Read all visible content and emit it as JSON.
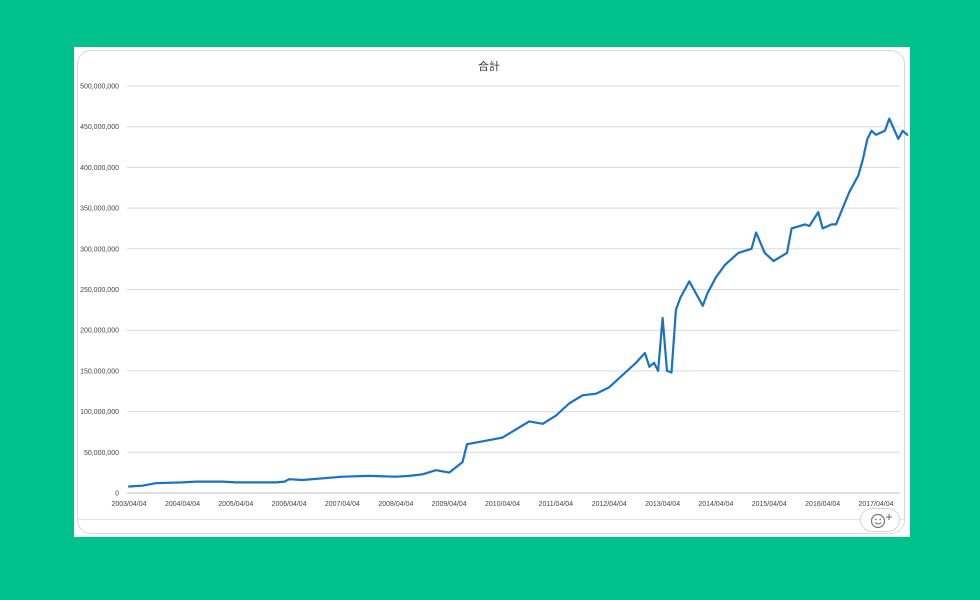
{
  "colors": {
    "page_bg": "#00c08b",
    "line": "#1a72c0",
    "grid": "#d9d9d9"
  },
  "reaction": {
    "icon": "smiley-plus-icon"
  },
  "chart_data": {
    "type": "line",
    "title": "合計",
    "xlabel": "",
    "ylabel": "",
    "grid": true,
    "legend": "none",
    "ylim": [
      0,
      500000000
    ],
    "y_ticks": [
      "0",
      "50,000,000",
      "100,000,000",
      "150,000,000",
      "200,000,000",
      "250,000,000",
      "300,000,000",
      "350,000,000",
      "400,000,000",
      "450,000,000",
      "500,000,000"
    ],
    "x_ticks": [
      "2003/04/04",
      "2004/04/04",
      "2005/04/04",
      "2006/04/04",
      "2007/04/04",
      "2008/04/04",
      "2009/04/04",
      "2010/04/04",
      "2011/04/04",
      "2012/04/04",
      "2013/04/04",
      "2014/04/04",
      "2015/04/04",
      "2016/04/04",
      "2017/04/04"
    ],
    "series": [
      {
        "x": [
          "2003/04/04",
          "2003/07/04",
          "2003/10/04",
          "2004/04/04",
          "2004/07/04",
          "2005/01/04",
          "2005/04/04",
          "2006/01/04",
          "2006/03/04",
          "2006/04/04",
          "2006/07/04",
          "2007/04/04",
          "2007/10/04",
          "2008/04/04",
          "2008/07/04",
          "2008/10/04",
          "2009/01/04",
          "2009/04/04",
          "2009/07/04",
          "2009/08/04",
          "2010/01/04",
          "2010/04/04",
          "2010/07/04",
          "2010/10/04",
          "2011/01/04",
          "2011/04/04",
          "2011/07/04",
          "2011/10/04",
          "2012/01/04",
          "2012/04/04",
          "2012/07/04",
          "2012/10/04",
          "2012/12/04",
          "2013/01/04",
          "2013/02/04",
          "2013/03/04",
          "2013/04/04",
          "2013/05/04",
          "2013/06/04",
          "2013/07/04",
          "2013/08/04",
          "2013/10/04",
          "2014/01/04",
          "2014/02/04",
          "2014/04/04",
          "2014/06/04",
          "2014/09/04",
          "2014/12/04",
          "2015/01/04",
          "2015/03/04",
          "2015/05/04",
          "2015/08/04",
          "2015/09/04",
          "2015/12/04",
          "2016/01/04",
          "2016/03/04",
          "2016/04/04",
          "2016/06/04",
          "2016/07/04",
          "2016/10/04",
          "2016/12/04",
          "2017/01/04",
          "2017/02/04",
          "2017/03/04",
          "2017/04/04",
          "2017/06/04",
          "2017/07/04",
          "2017/09/04",
          "2017/10/04",
          "2017/11/04"
        ],
        "values": [
          8000000,
          9000000,
          12000000,
          13000000,
          14000000,
          14000000,
          13000000,
          13000000,
          14000000,
          17000000,
          16000000,
          20000000,
          21000000,
          20000000,
          21000000,
          23000000,
          28000000,
          25000000,
          38000000,
          60000000,
          65000000,
          68000000,
          78000000,
          88000000,
          85000000,
          95000000,
          110000000,
          120000000,
          122000000,
          130000000,
          145000000,
          160000000,
          172000000,
          155000000,
          160000000,
          150000000,
          215000000,
          150000000,
          148000000,
          225000000,
          240000000,
          260000000,
          230000000,
          245000000,
          265000000,
          280000000,
          295000000,
          300000000,
          320000000,
          295000000,
          285000000,
          295000000,
          325000000,
          330000000,
          328000000,
          345000000,
          325000000,
          330000000,
          330000000,
          370000000,
          390000000,
          410000000,
          435000000,
          445000000,
          440000000,
          445000000,
          460000000,
          435000000,
          445000000,
          440000000
        ]
      }
    ]
  }
}
